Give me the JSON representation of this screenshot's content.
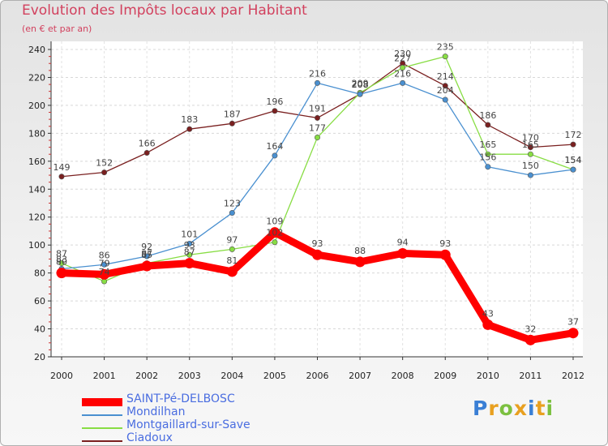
{
  "chart_data": {
    "type": "line",
    "title": "Evolution des Impôts locaux par Habitant",
    "subtitle": "(en € et par an)",
    "xlabel": "",
    "ylabel": "",
    "categories": [
      "2000",
      "2001",
      "2002",
      "2003",
      "2004",
      "2005",
      "2006",
      "2007",
      "2008",
      "2009",
      "2010",
      "2011",
      "2012"
    ],
    "ylim": [
      20,
      240
    ],
    "yticks": [
      20,
      40,
      60,
      80,
      100,
      120,
      140,
      160,
      180,
      200,
      220,
      240
    ],
    "grid": true,
    "legend_position": "bottom-left",
    "series": [
      {
        "name": "SAINT-Pé-DELBOSC",
        "color": "#ff0000",
        "values": [
          80,
          79,
          85,
          87,
          81,
          109,
          93,
          88,
          94,
          93,
          43,
          32,
          37
        ]
      },
      {
        "name": "Mondilhan",
        "color": "#4a90d0",
        "values": [
          83,
          86,
          92,
          101,
          123,
          164,
          216,
          208,
          216,
          204,
          156,
          150,
          154
        ]
      },
      {
        "name": "Montgaillard-sur-Save",
        "color": "#88dd44",
        "values": [
          87,
          74,
          87,
          93,
          97,
          102,
          177,
          209,
          227,
          235,
          165,
          165,
          154
        ]
      },
      {
        "name": "Ciadoux",
        "color": "#7a2020",
        "values": [
          149,
          152,
          166,
          183,
          187,
          196,
          191,
          208,
          230,
          214,
          186,
          170,
          172
        ]
      }
    ]
  },
  "logo": {
    "letters": [
      "P",
      "r",
      "o",
      "x",
      "i",
      "t",
      "i"
    ],
    "colors": [
      "#3a7fd5",
      "#e8a020",
      "#7cc040",
      "#e8a020",
      "#3a7fd5",
      "#e8a020",
      "#7cc040"
    ]
  }
}
